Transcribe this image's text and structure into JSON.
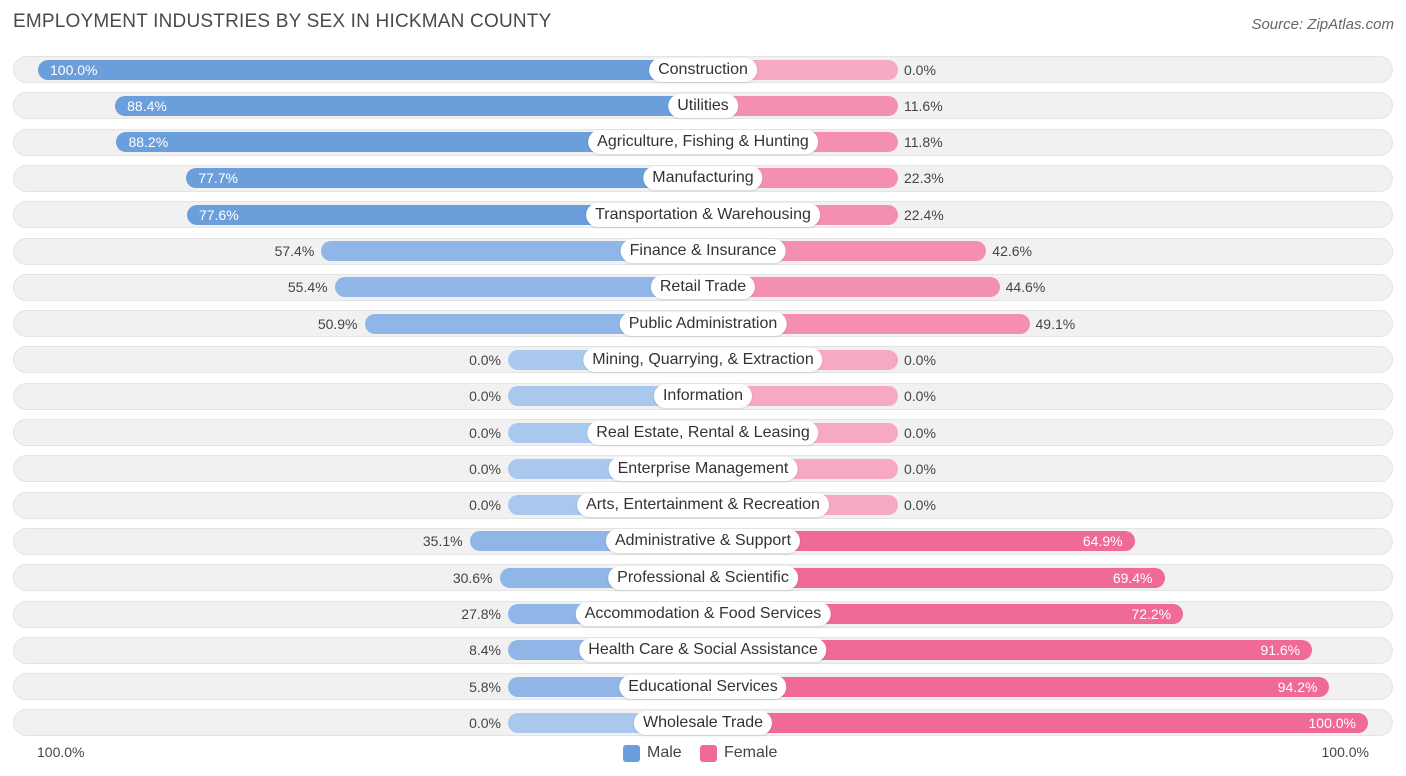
{
  "title": "EMPLOYMENT INDUSTRIES BY SEX IN HICKMAN COUNTY",
  "source": "Source: ZipAtlas.com",
  "colors": {
    "male_strong": "#6a9fdc",
    "male_light": "#a9c8ee",
    "female_strong": "#f06a96",
    "female_light": "#f7a8c2",
    "row_bg": "#f1f1f1"
  },
  "chart_data": {
    "type": "bar",
    "orientation": "horizontal-diverging",
    "title": "EMPLOYMENT INDUSTRIES BY SEX IN HICKMAN COUNTY",
    "categories": [
      "Construction",
      "Utilities",
      "Agriculture, Fishing & Hunting",
      "Manufacturing",
      "Transportation & Warehousing",
      "Finance & Insurance",
      "Retail Trade",
      "Public Administration",
      "Mining, Quarrying, & Extraction",
      "Information",
      "Real Estate, Rental & Leasing",
      "Enterprise Management",
      "Arts, Entertainment & Recreation",
      "Administrative & Support",
      "Professional & Scientific",
      "Accommodation & Food Services",
      "Health Care & Social Assistance",
      "Educational Services",
      "Wholesale Trade"
    ],
    "series": [
      {
        "name": "Male",
        "values": [
          100.0,
          88.4,
          88.2,
          77.7,
          77.6,
          57.4,
          55.4,
          50.9,
          0.0,
          0.0,
          0.0,
          0.0,
          0.0,
          35.1,
          30.6,
          27.8,
          8.4,
          5.8,
          0.0
        ],
        "labels": [
          "100.0%",
          "88.4%",
          "88.2%",
          "77.7%",
          "77.6%",
          "57.4%",
          "55.4%",
          "50.9%",
          "0.0%",
          "0.0%",
          "0.0%",
          "0.0%",
          "0.0%",
          "35.1%",
          "30.6%",
          "27.8%",
          "8.4%",
          "5.8%",
          "0.0%"
        ]
      },
      {
        "name": "Female",
        "values": [
          0.0,
          11.6,
          11.8,
          22.3,
          22.4,
          42.6,
          44.6,
          49.1,
          0.0,
          0.0,
          0.0,
          0.0,
          0.0,
          64.9,
          69.4,
          72.2,
          91.6,
          94.2,
          100.0
        ],
        "labels": [
          "0.0%",
          "11.6%",
          "11.8%",
          "22.3%",
          "22.4%",
          "42.6%",
          "44.6%",
          "49.1%",
          "0.0%",
          "0.0%",
          "0.0%",
          "0.0%",
          "0.0%",
          "64.9%",
          "69.4%",
          "72.2%",
          "91.6%",
          "94.2%",
          "100.0%"
        ]
      }
    ],
    "xlim": [
      -100,
      100
    ],
    "axis_left_label": "100.0%",
    "axis_right_label": "100.0%",
    "legend": [
      "Male",
      "Female"
    ],
    "legend_position": "bottom-center"
  }
}
